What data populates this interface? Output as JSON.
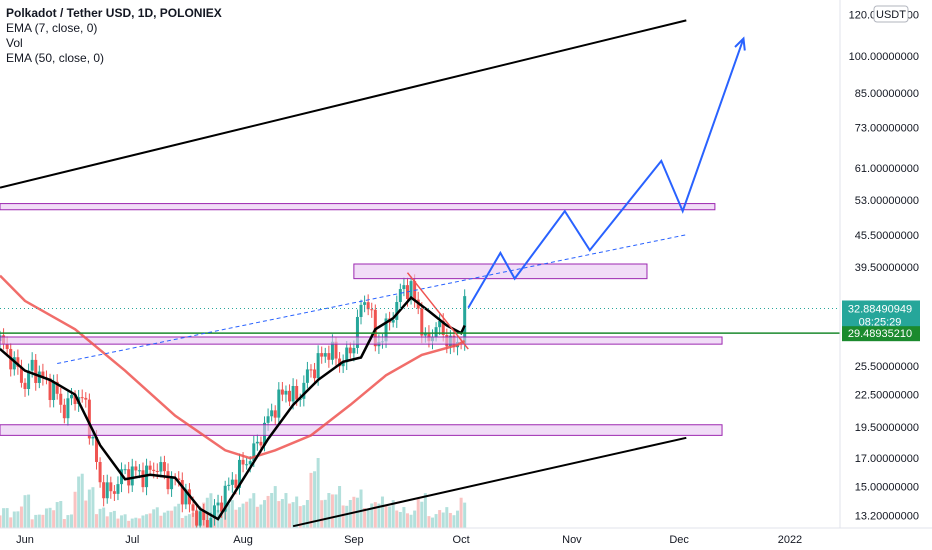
{
  "legend": {
    "title": "Polkadot / Tether USD, 1D, POLONIEX",
    "indicators": [
      "EMA (7, close, 0)",
      "Vol",
      "EMA (50, close, 0)"
    ]
  },
  "currency": "USDT",
  "price_axis": {
    "ticks": [
      "120.00000000",
      "100.00000000",
      "85.00000000",
      "73.00000000",
      "61.00000000",
      "53.00000000",
      "45.50000000",
      "39.50000000",
      "25.50000000",
      "22.50000000",
      "19.50000000",
      "17.00000000",
      "15.00000000",
      "13.20000000"
    ],
    "last_price": "32.88490949",
    "countdown": "08:25:29",
    "level_label": "29.48935210"
  },
  "time_axis": {
    "ticks": [
      "Jun",
      "Jul",
      "Aug",
      "Sep",
      "Oct",
      "Nov",
      "Dec",
      "2022"
    ]
  },
  "colors": {
    "up": "#26a69a",
    "down": "#ef5350",
    "ema7": "#000000",
    "ema50": "#ef5350",
    "projection": "#2962ff",
    "zone_fill": "#e8c6f2",
    "zone_border": "#9c27b0",
    "green_line": "#1b8a2e",
    "last_price_bg": "#26a69a",
    "level_bg": "#1b8a2e"
  },
  "chart_data": {
    "type": "candlestick",
    "y_scale": "log",
    "ylim": [
      12.5,
      128
    ],
    "xlim": [
      "2021-05-25",
      "2022-01-15"
    ],
    "price_series": [
      [
        "2021-05-25",
        28.5
      ],
      [
        "2021-05-28",
        26.5
      ],
      [
        "2021-06-01",
        23.5
      ],
      [
        "2021-06-03",
        25.5
      ],
      [
        "2021-06-06",
        24.0
      ],
      [
        "2021-06-09",
        23.0
      ],
      [
        "2021-06-12",
        21.0
      ],
      [
        "2021-06-15",
        22.5
      ],
      [
        "2021-06-18",
        21.5
      ],
      [
        "2021-06-22",
        15.2
      ],
      [
        "2021-06-25",
        14.5
      ],
      [
        "2021-06-28",
        15.8
      ],
      [
        "2021-07-01",
        16.0
      ],
      [
        "2021-07-05",
        15.8
      ],
      [
        "2021-07-08",
        16.5
      ],
      [
        "2021-07-11",
        15.5
      ],
      [
        "2021-07-14",
        15.2
      ],
      [
        "2021-07-17",
        13.8
      ],
      [
        "2021-07-20",
        12.9
      ],
      [
        "2021-07-22",
        12.8
      ],
      [
        "2021-07-25",
        13.8
      ],
      [
        "2021-07-28",
        15.0
      ],
      [
        "2021-08-01",
        16.5
      ],
      [
        "2021-08-04",
        17.5
      ],
      [
        "2021-08-07",
        19.5
      ],
      [
        "2021-08-10",
        21.5
      ],
      [
        "2021-08-13",
        23.0
      ],
      [
        "2021-08-16",
        22.0
      ],
      [
        "2021-08-19",
        24.5
      ],
      [
        "2021-08-22",
        26.0
      ],
      [
        "2021-08-25",
        27.5
      ],
      [
        "2021-08-28",
        26.0
      ],
      [
        "2021-08-31",
        27.0
      ],
      [
        "2021-09-03",
        33.0
      ],
      [
        "2021-09-05",
        34.5
      ],
      [
        "2021-09-07",
        28.0
      ],
      [
        "2021-09-10",
        30.0
      ],
      [
        "2021-09-13",
        33.5
      ],
      [
        "2021-09-15",
        36.5
      ],
      [
        "2021-09-17",
        35.5
      ],
      [
        "2021-09-19",
        33.0
      ],
      [
        "2021-09-21",
        28.0
      ],
      [
        "2021-09-24",
        30.5
      ],
      [
        "2021-09-27",
        29.0
      ],
      [
        "2021-09-29",
        27.5
      ],
      [
        "2021-10-01",
        29.5
      ],
      [
        "2021-10-02",
        32.88
      ]
    ],
    "ema7": [
      [
        "2021-05-25",
        27.5
      ],
      [
        "2021-06-01",
        25.0
      ],
      [
        "2021-06-08",
        24.0
      ],
      [
        "2021-06-15",
        22.5
      ],
      [
        "2021-06-22",
        18.0
      ],
      [
        "2021-06-29",
        15.5
      ],
      [
        "2021-07-06",
        15.8
      ],
      [
        "2021-07-13",
        15.6
      ],
      [
        "2021-07-20",
        13.6
      ],
      [
        "2021-07-25",
        13.0
      ],
      [
        "2021-08-01",
        15.5
      ],
      [
        "2021-08-08",
        18.5
      ],
      [
        "2021-08-15",
        21.5
      ],
      [
        "2021-08-22",
        24.0
      ],
      [
        "2021-08-29",
        26.0
      ],
      [
        "2021-09-03",
        26.5
      ],
      [
        "2021-09-07",
        30.0
      ],
      [
        "2021-09-12",
        31.5
      ],
      [
        "2021-09-17",
        34.5
      ],
      [
        "2021-09-22",
        32.5
      ],
      [
        "2021-09-27",
        30.5
      ],
      [
        "2021-10-01",
        29.5
      ],
      [
        "2021-10-02",
        30.5
      ]
    ],
    "ema50": [
      [
        "2021-05-25",
        38.0
      ],
      [
        "2021-06-01",
        34.0
      ],
      [
        "2021-06-15",
        30.0
      ],
      [
        "2021-06-29",
        25.0
      ],
      [
        "2021-07-13",
        20.5
      ],
      [
        "2021-07-27",
        17.6
      ],
      [
        "2021-08-03",
        17.0
      ],
      [
        "2021-08-10",
        17.6
      ],
      [
        "2021-08-20",
        18.8
      ],
      [
        "2021-08-31",
        21.5
      ],
      [
        "2021-09-10",
        24.5
      ],
      [
        "2021-09-20",
        26.8
      ],
      [
        "2021-09-30",
        28.0
      ],
      [
        "2021-10-02",
        28.5
      ]
    ],
    "volume_relative": [
      0.3,
      0.25,
      0.5,
      0.2,
      0.3,
      0.4,
      0.2,
      0.8,
      0.6,
      0.3,
      0.25,
      0.2,
      0.15,
      0.2,
      0.3,
      0.25,
      0.35,
      0.2,
      0.3,
      0.5,
      0.3,
      0.4,
      0.35,
      0.5,
      0.4,
      0.6,
      0.5,
      0.45,
      0.4,
      1.0,
      0.5,
      0.6,
      0.4,
      0.55,
      0.35,
      0.45,
      0.4,
      0.3,
      0.25,
      0.5,
      0.2
    ],
    "drawings": {
      "upper_trendline": [
        [
          "2021-05-25",
          56.0
        ],
        [
          "2021-12-03",
          117.0
        ]
      ],
      "lower_trendline": [
        [
          "2021-08-15",
          12.6
        ],
        [
          "2021-12-03",
          18.6
        ]
      ],
      "dashed_trendline": [
        [
          "2021-06-10",
          25.8
        ],
        [
          "2021-12-03",
          45.5
        ]
      ],
      "red_downtrend": [
        [
          "2021-09-16",
          38.5
        ],
        [
          "2021-10-03",
          27.5
        ]
      ],
      "zones": [
        {
          "from": "2021-05-25",
          "to": "2021-12-11",
          "low": 50.8,
          "high": 52.2
        },
        {
          "from": "2021-09-01",
          "to": "2021-11-22",
          "low": 37.5,
          "high": 40.0
        },
        {
          "from": "2021-05-25",
          "to": "2021-12-13",
          "low": 28.1,
          "high": 29.0
        },
        {
          "from": "2021-05-25",
          "to": "2021-12-13",
          "low": 18.8,
          "high": 19.7
        }
      ],
      "green_level": 29.49,
      "projection": [
        [
          "2021-10-03",
          33.0
        ],
        [
          "2021-10-12",
          42.0
        ],
        [
          "2021-10-16",
          37.5
        ],
        [
          "2021-10-30",
          50.5
        ],
        [
          "2021-11-06",
          42.5
        ],
        [
          "2021-11-26",
          63.0
        ],
        [
          "2021-12-02",
          50.5
        ],
        [
          "2021-12-19",
          108.0
        ]
      ]
    }
  }
}
